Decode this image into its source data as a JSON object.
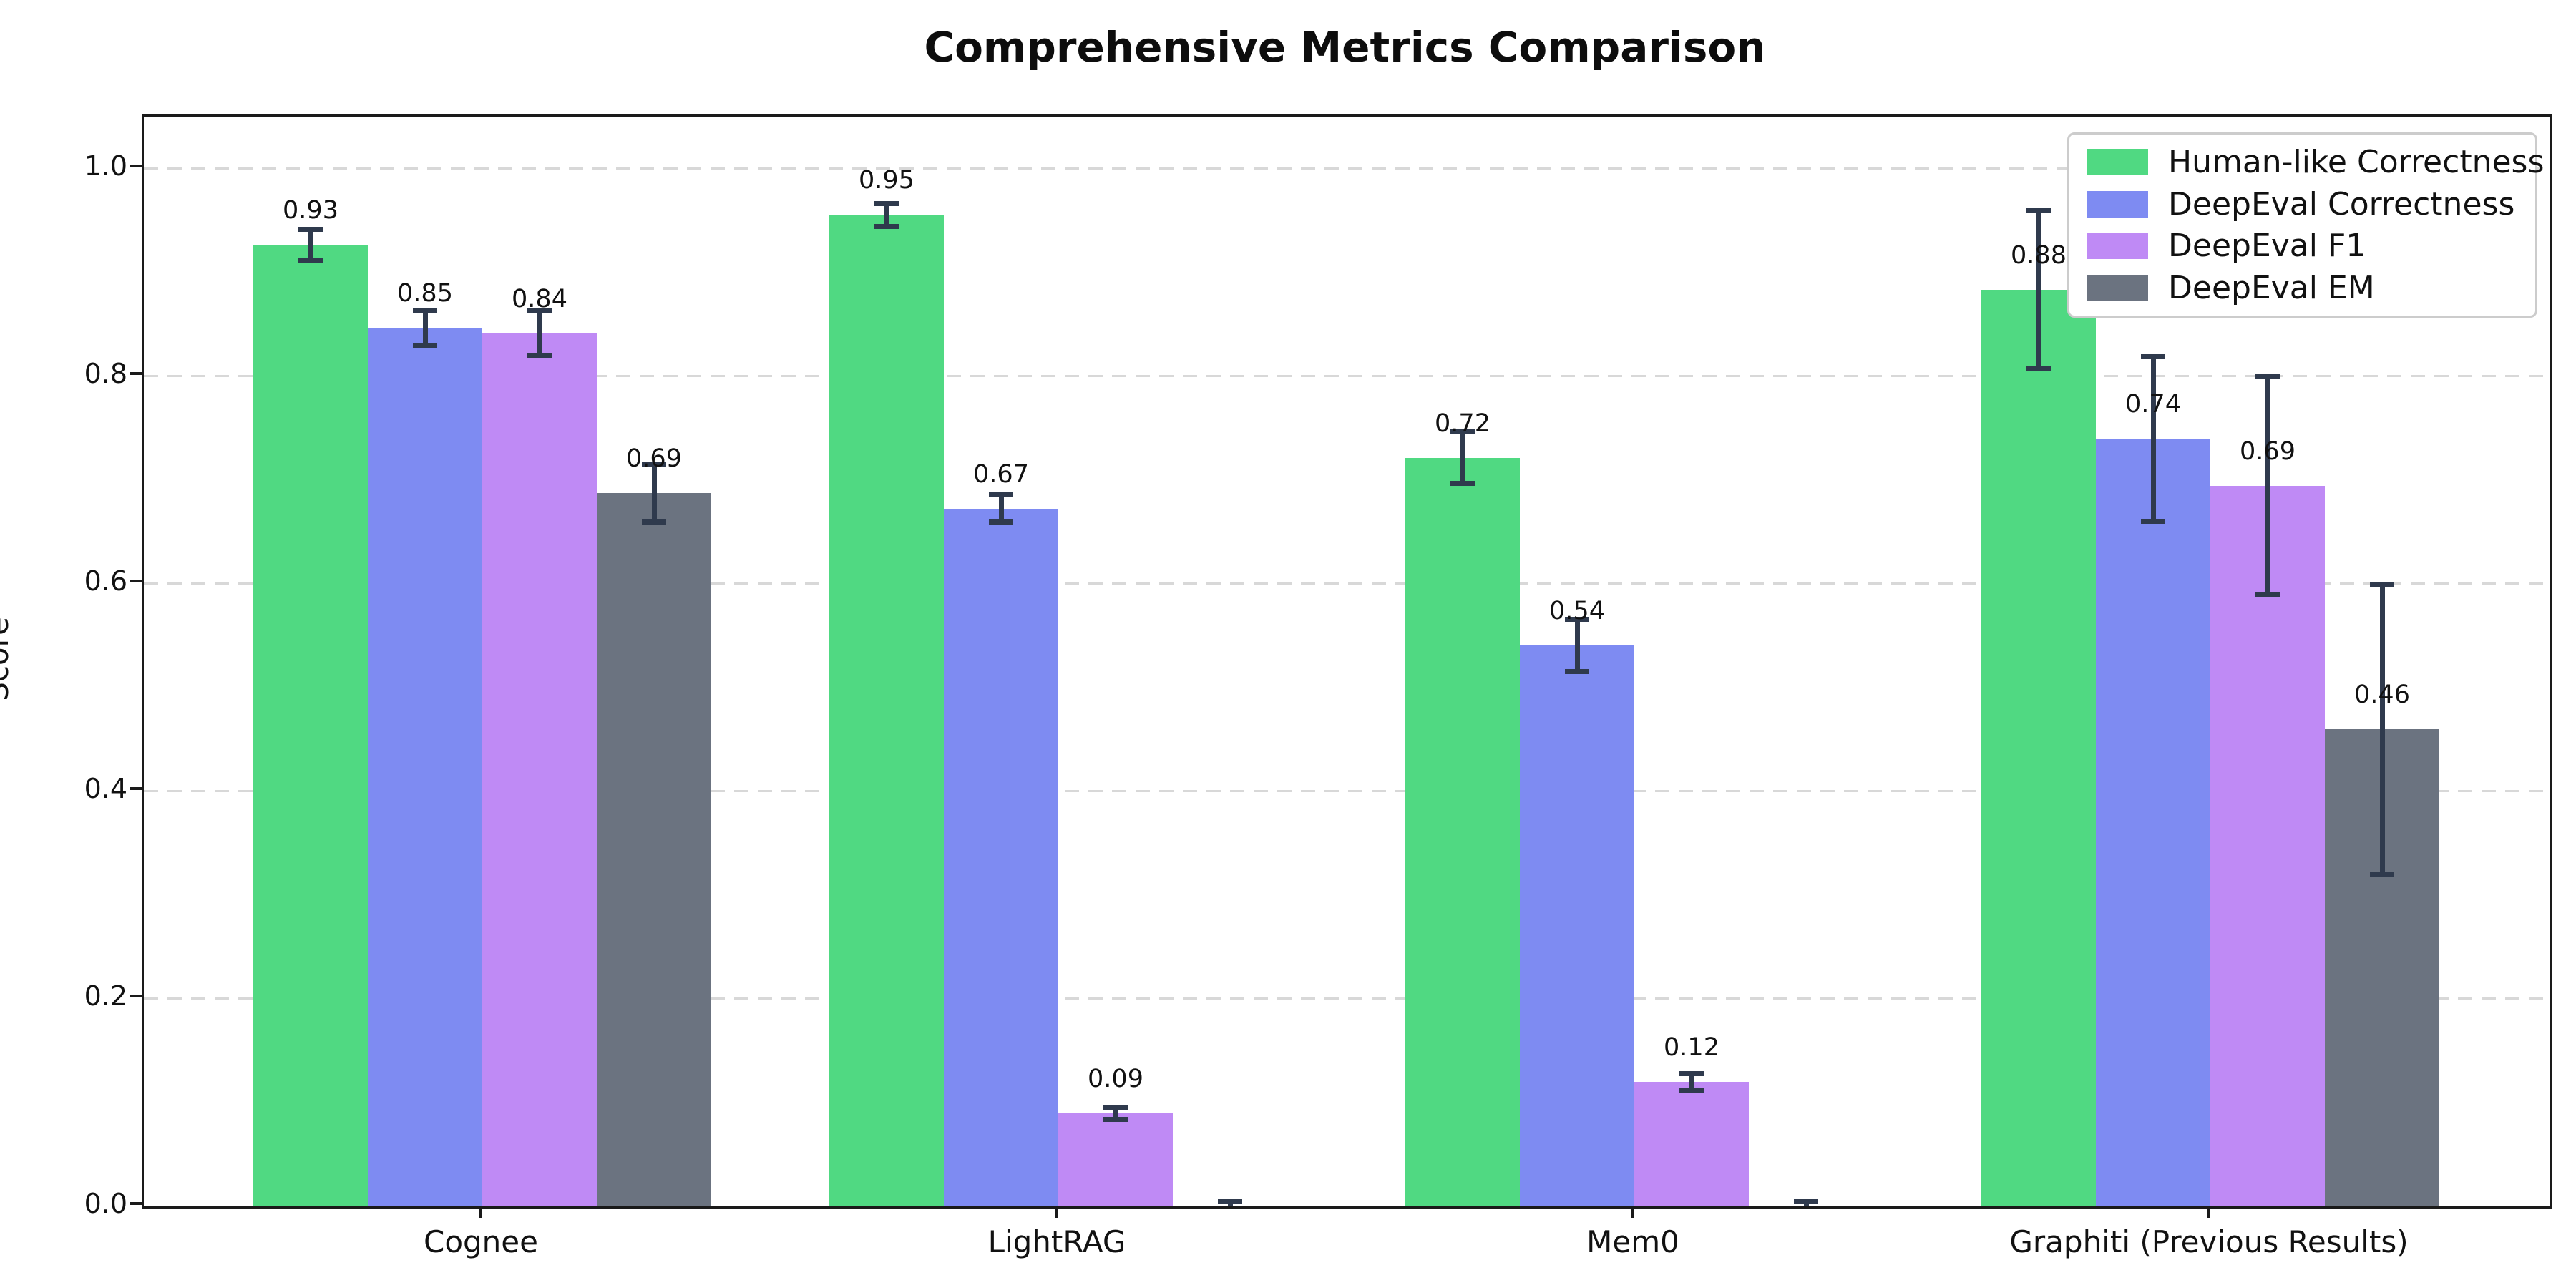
{
  "chart_data": {
    "type": "bar",
    "title": "Comprehensive Metrics Comparison",
    "xlabel": "",
    "ylabel": "Score",
    "ylim": [
      0.0,
      1.05
    ],
    "yticks": [
      0.0,
      0.2,
      0.4,
      0.6,
      0.8,
      1.0
    ],
    "ytick_labels": [
      "0.0",
      "0.2",
      "0.4",
      "0.6",
      "0.8",
      "1.0"
    ],
    "grid": "horizontal dashed",
    "grid_color": "#d8d8d8",
    "legend_position": "upper right",
    "error_bar_color": "#2f3a4d",
    "categories": [
      "Cognee",
      "LightRAG",
      "Mem0",
      "Graphiti (Previous Results)"
    ],
    "series": [
      {
        "name": "Human-like Correctness",
        "color": "#50d982",
        "values": [
          0.926,
          0.955,
          0.721,
          0.883
        ],
        "bar_labels": [
          "0.93",
          "0.95",
          "0.72",
          "0.88"
        ],
        "errors": [
          0.015,
          0.011,
          0.025,
          0.076
        ]
      },
      {
        "name": "DeepEval Correctness",
        "color": "#7e8bf2",
        "values": [
          0.846,
          0.672,
          0.54,
          0.739
        ],
        "bar_labels": [
          "0.85",
          "0.67",
          "0.54",
          "0.74"
        ],
        "errors": [
          0.017,
          0.013,
          0.025,
          0.079
        ]
      },
      {
        "name": "DeepEval F1",
        "color": "#bf8af5",
        "values": [
          0.841,
          0.089,
          0.119,
          0.694
        ],
        "bar_labels": [
          "0.84",
          "0.09",
          "0.12",
          "0.69"
        ],
        "errors": [
          0.022,
          0.006,
          0.008,
          0.105
        ]
      },
      {
        "name": "DeepEval EM",
        "color": "#6b7380",
        "values": [
          0.687,
          0.0,
          0.0,
          0.459
        ],
        "bar_labels": [
          "0.69",
          null,
          null,
          "0.46"
        ],
        "errors": [
          0.028,
          0.004,
          0.004,
          0.14
        ]
      }
    ]
  }
}
